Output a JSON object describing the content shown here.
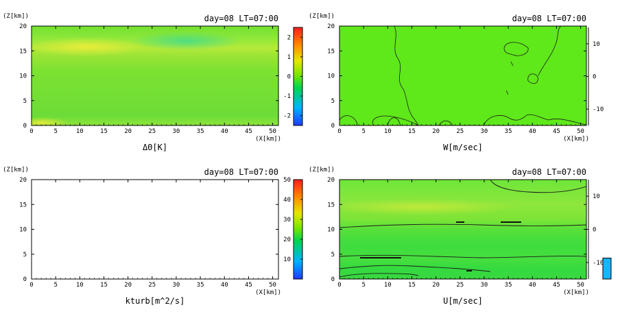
{
  "chart_data": [
    {
      "type": "heatmap",
      "title": "day=08 LT=07:00",
      "xlabel": "ΔΘ[K]",
      "xunit": "(X[km])",
      "yunit": "(Z[km])",
      "xlim": [
        0,
        51.2
      ],
      "ylim": [
        0,
        20
      ],
      "xticks": [
        "0",
        "5",
        "10",
        "15",
        "20",
        "25",
        "30",
        "35",
        "40",
        "45",
        "50"
      ],
      "yticks": [
        "0",
        "5",
        "10",
        "15",
        "20"
      ],
      "colorbar": {
        "min": -2.5,
        "max": 2.5,
        "ticks": [
          "-2",
          "-1",
          "0",
          "1",
          "2"
        ]
      }
    },
    {
      "type": "heatmap",
      "title": "day=08 LT=07:00",
      "xlabel": "W[m/sec]",
      "xunit": "(X[km])",
      "yunit": "(Z[km])",
      "xlim": [
        0,
        51.2
      ],
      "ylim": [
        0,
        20
      ],
      "xticks": [
        "0",
        "5",
        "10",
        "15",
        "20",
        "25",
        "30",
        "35",
        "40",
        "45",
        "50"
      ],
      "yticks": [
        "0",
        "5",
        "10",
        "15",
        "20"
      ],
      "colorbar": {
        "min": -15,
        "max": 15,
        "ticks": [
          "10",
          "0",
          "-10"
        ]
      }
    },
    {
      "type": "heatmap",
      "title": "day=08 LT=07:00",
      "xlabel": "kturb[m^2/s]",
      "xunit": "(X[km])",
      "yunit": "(Z[km])",
      "xlim": [
        0,
        51.2
      ],
      "ylim": [
        0,
        20
      ],
      "xticks": [
        "0",
        "5",
        "10",
        "15",
        "20",
        "25",
        "30",
        "35",
        "40",
        "45",
        "50"
      ],
      "yticks": [
        "0",
        "5",
        "10",
        "15",
        "20"
      ],
      "colorbar": {
        "min": 0,
        "max": 50,
        "ticks": [
          "50",
          "40",
          "30",
          "20",
          "10"
        ]
      }
    },
    {
      "type": "heatmap",
      "title": "day=08 LT=07:00",
      "xlabel": "U[m/sec]",
      "xunit": "(X[km])",
      "yunit": "(Z[km])",
      "xlim": [
        0,
        51.2
      ],
      "ylim": [
        0,
        20
      ],
      "xticks": [
        "0",
        "5",
        "10",
        "15",
        "20",
        "25",
        "30",
        "35",
        "40",
        "45",
        "50"
      ],
      "yticks": [
        "0",
        "5",
        "10",
        "15",
        "20"
      ],
      "colorbar": {
        "min": -15,
        "max": 15,
        "ticks": [
          "10",
          "0",
          "-10"
        ]
      }
    }
  ]
}
